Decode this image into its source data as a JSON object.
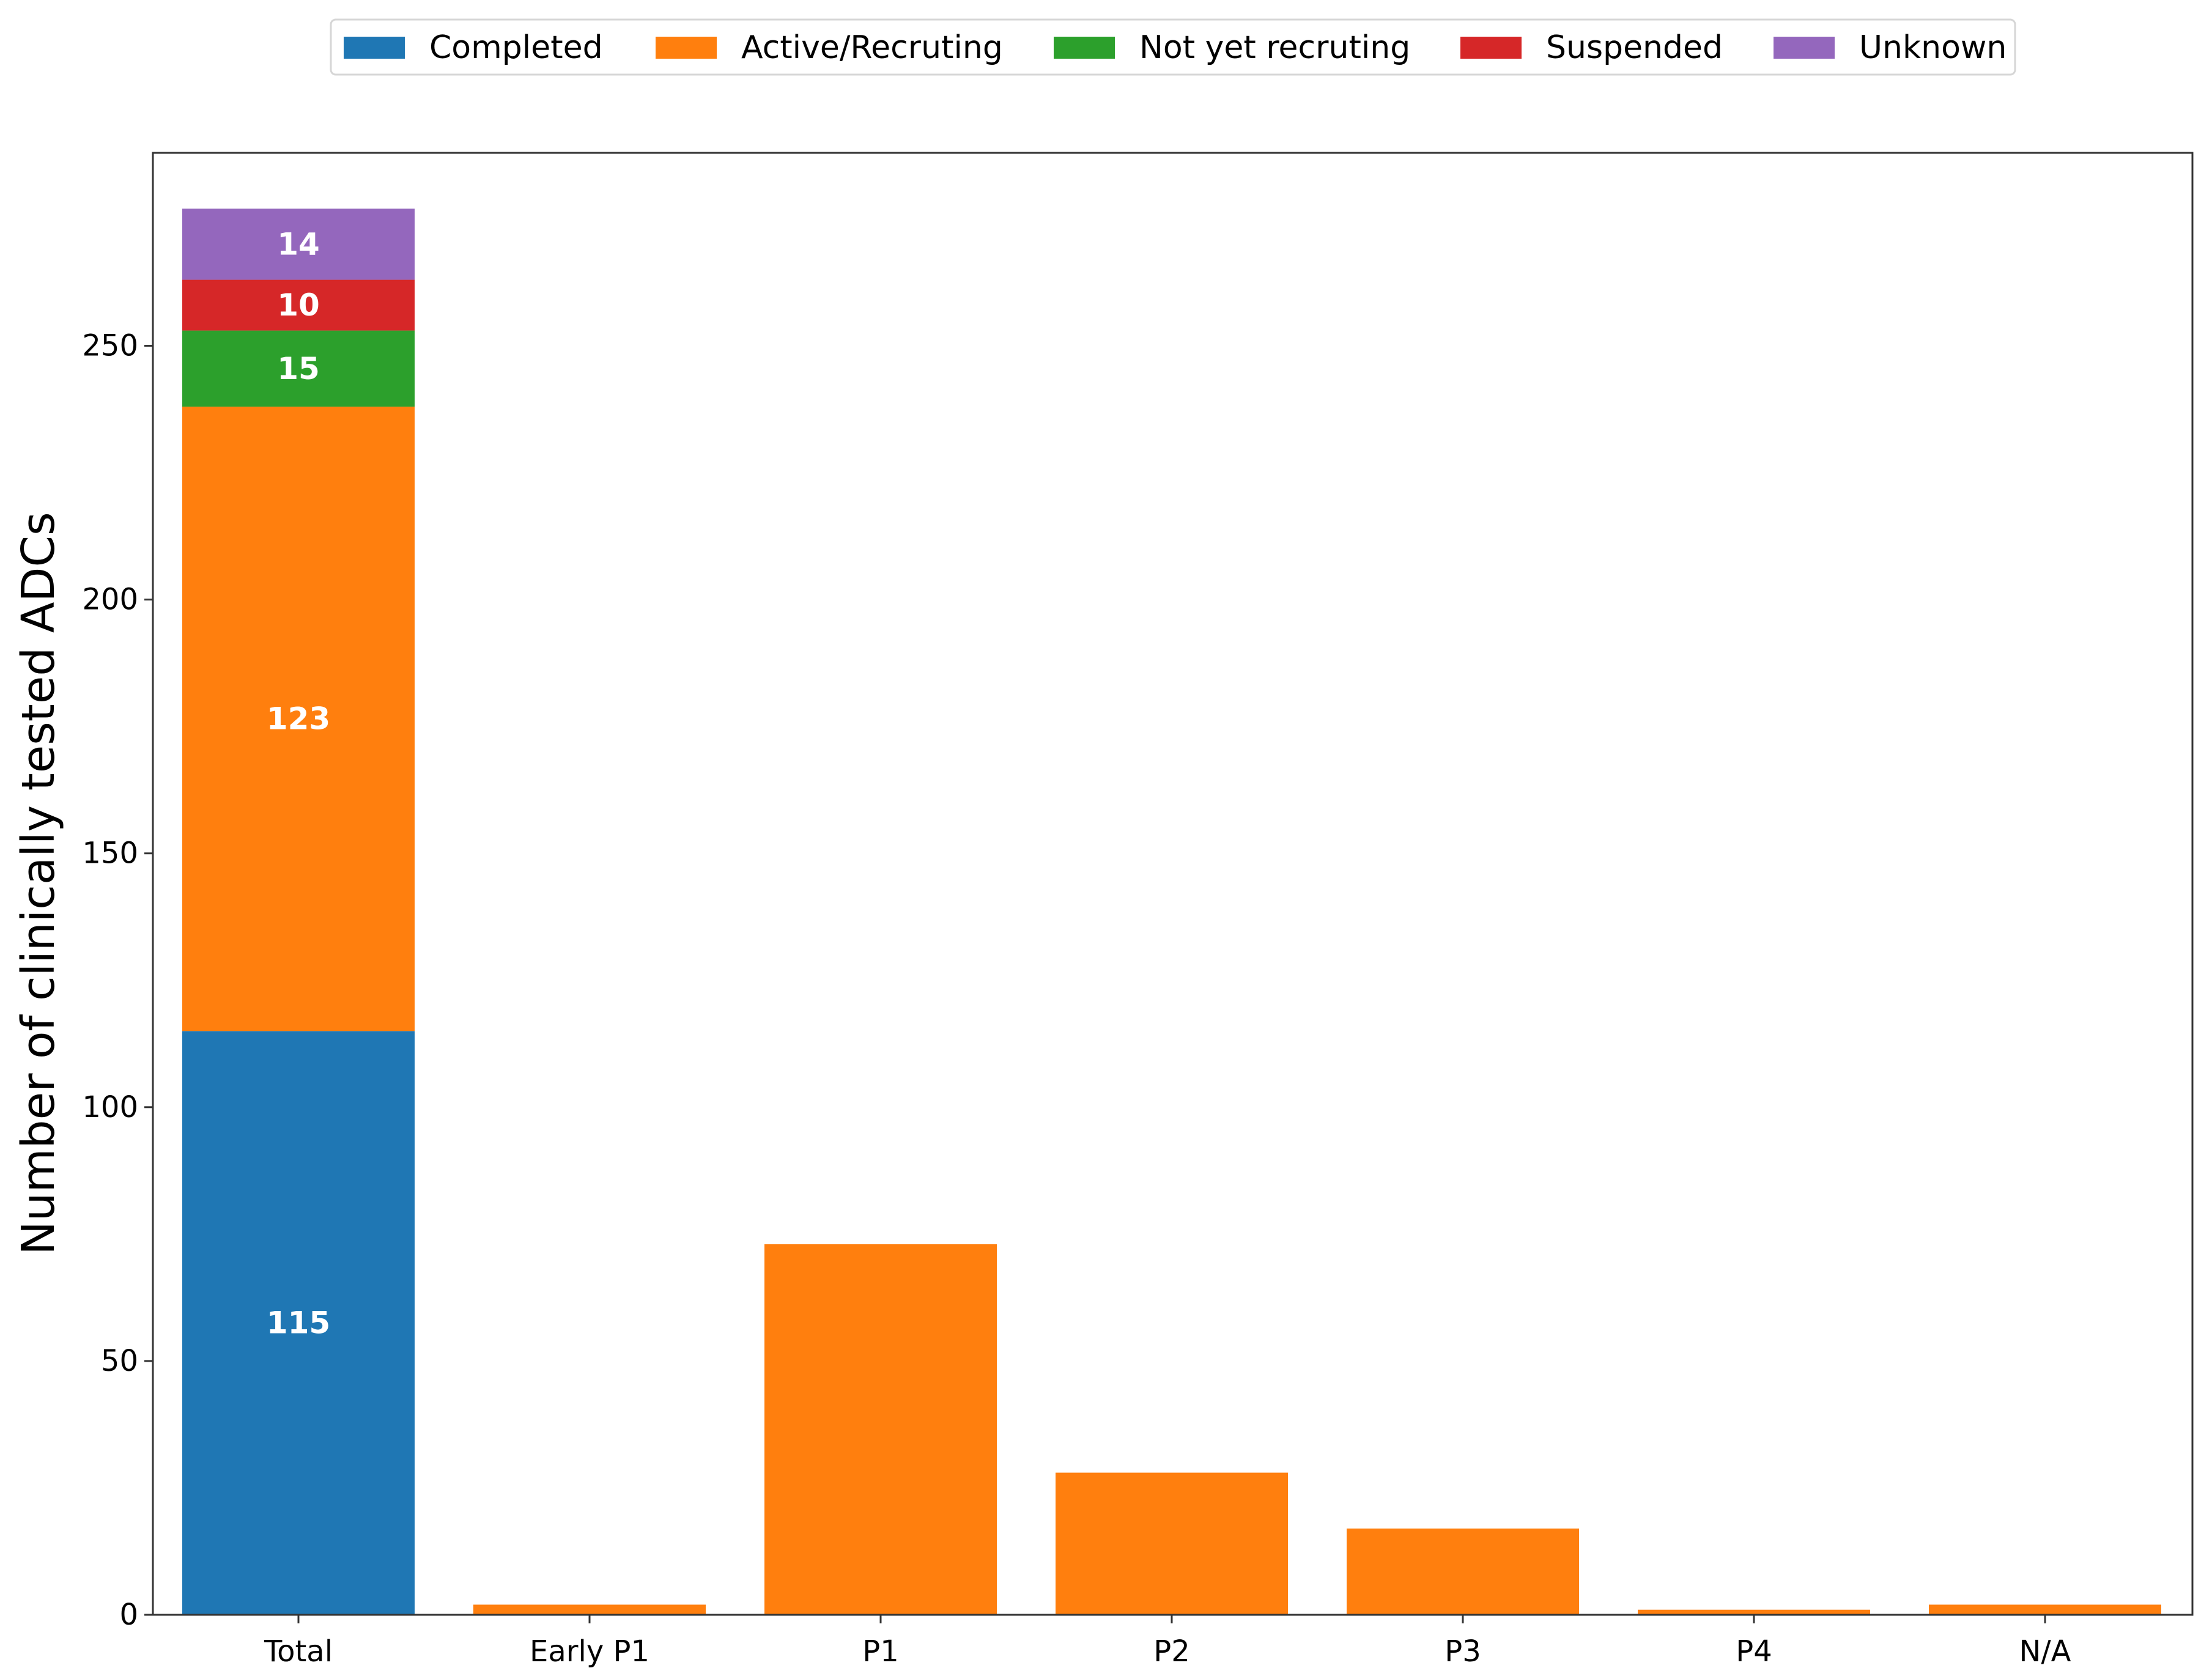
{
  "chart_data": {
    "type": "bar",
    "stacked": true,
    "title": "",
    "xlabel": "",
    "ylabel": "Number of clinically tested ADCs",
    "categories": [
      "Total",
      "Early P1",
      "P1",
      "P2",
      "P3",
      "P4",
      "N/A"
    ],
    "ylim": [
      0,
      288
    ],
    "yticks": [
      0,
      50,
      100,
      150,
      200,
      250
    ],
    "grid": false,
    "legend_position": "top-center",
    "series": [
      {
        "name": "Completed",
        "color": "#1f77b4",
        "values": [
          115,
          0,
          0,
          0,
          0,
          0,
          0
        ]
      },
      {
        "name": "Active/Recruting",
        "color": "#ff7f0e",
        "values": [
          123,
          2,
          73,
          28,
          17,
          1,
          2
        ]
      },
      {
        "name": "Not yet recruting",
        "color": "#2ca02c",
        "values": [
          15,
          0,
          0,
          0,
          0,
          0,
          0
        ]
      },
      {
        "name": "Suspended",
        "color": "#d62728",
        "values": [
          10,
          0,
          0,
          0,
          0,
          0,
          0
        ]
      },
      {
        "name": "Unknown",
        "color": "#9467bd",
        "values": [
          14,
          0,
          0,
          0,
          0,
          0,
          0
        ]
      }
    ],
    "data_labels": [
      {
        "category": "Total",
        "series": "Completed",
        "text": "115"
      },
      {
        "category": "Total",
        "series": "Active/Recruting",
        "text": "123"
      },
      {
        "category": "Total",
        "series": "Not yet recruting",
        "text": "15"
      },
      {
        "category": "Total",
        "series": "Suspended",
        "text": "10"
      },
      {
        "category": "Total",
        "series": "Unknown",
        "text": "14"
      }
    ]
  }
}
